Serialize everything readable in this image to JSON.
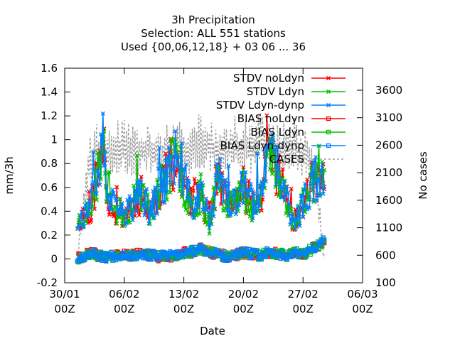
{
  "chart_data": {
    "type": "line",
    "title_lines": [
      "3h Precipitation",
      "Selection: ALL    551 stations",
      "Used {00,06,12,18} + 03 06 ... 36"
    ],
    "xlabel": "Date",
    "ylabel": "mm/3h",
    "y2label": "No cases",
    "xlim": [
      0,
      35
    ],
    "ylim": [
      -0.2,
      1.6
    ],
    "y2lim": [
      100,
      4000
    ],
    "yticks": [
      -0.2,
      0,
      0.2,
      0.4,
      0.6,
      0.8,
      1,
      1.2,
      1.4,
      1.6
    ],
    "ytick_labels": [
      "-0.2",
      "0",
      "0.2",
      "0.4",
      "0.6",
      "0.8",
      "1",
      "1.2",
      "1.4",
      "1.6"
    ],
    "y2ticks": [
      100,
      600,
      1100,
      1600,
      2100,
      2600,
      3100,
      3600
    ],
    "y2tick_labels": [
      "100",
      "600",
      "1100",
      "1600",
      "2100",
      "2600",
      "3100",
      "3600"
    ],
    "xticks": [
      {
        "x": 0,
        "line1": "30/01",
        "line2": "00Z"
      },
      {
        "x": 7,
        "line1": "06/02",
        "line2": "00Z"
      },
      {
        "x": 14,
        "line1": "13/02",
        "line2": "00Z"
      },
      {
        "x": 21,
        "line1": "20/02",
        "line2": "00Z"
      },
      {
        "x": 28,
        "line1": "27/02",
        "line2": "00Z"
      },
      {
        "x": 35,
        "line1": "06/03",
        "line2": "00Z"
      }
    ],
    "series": [
      {
        "name": "STDV noLdyn",
        "color": "#ff0000",
        "marker": "x",
        "kind": "stdv",
        "seed": 11,
        "phase": 0.0
      },
      {
        "name": "STDV Ldyn",
        "color": "#00c000",
        "marker": "x",
        "kind": "stdv",
        "seed": 23,
        "phase": 0.3
      },
      {
        "name": "STDV Ldyn-dynp",
        "color": "#0080ff",
        "marker": "x",
        "kind": "stdv",
        "seed": 37,
        "phase": 0.6
      },
      {
        "name": "BIAS noLdyn",
        "color": "#ff0000",
        "marker": "square",
        "kind": "bias",
        "seed": 41,
        "phase": 0.1
      },
      {
        "name": "BIAS Ldyn",
        "color": "#00c000",
        "marker": "square",
        "kind": "bias",
        "seed": 53,
        "phase": 0.4
      },
      {
        "name": "BIAS Ldyn-dynp",
        "color": "#0080ff",
        "marker": "square",
        "kind": "bias",
        "seed": 67,
        "phase": 0.7
      },
      {
        "name": "CASES",
        "color": "#a0a0a0",
        "marker": "none",
        "kind": "cases",
        "seed": 79,
        "phase": 0.0
      }
    ],
    "data_range_days": [
      1.5,
      30.5
    ],
    "step_hours": 3,
    "profile_days": [
      1.5,
      2,
      3,
      4,
      4.5,
      5,
      6,
      7,
      8,
      9,
      10,
      11,
      12,
      13,
      14,
      15,
      16,
      17,
      18,
      19,
      20,
      21,
      22,
      23,
      24,
      25,
      26,
      27,
      28,
      29,
      30,
      30.5
    ],
    "stdv_profile": [
      0.3,
      0.35,
      0.4,
      0.75,
      0.95,
      0.55,
      0.4,
      0.38,
      0.45,
      0.55,
      0.4,
      0.55,
      0.7,
      0.85,
      0.6,
      0.45,
      0.55,
      0.3,
      0.7,
      0.5,
      0.45,
      0.6,
      0.45,
      0.5,
      0.9,
      0.75,
      0.5,
      0.3,
      0.45,
      0.65,
      0.7,
      0.6
    ],
    "bias_profile": [
      0.0,
      0.02,
      0.05,
      0.03,
      0.02,
      0.02,
      0.03,
      0.04,
      0.03,
      0.04,
      0.03,
      0.02,
      0.03,
      0.02,
      0.05,
      0.06,
      0.08,
      0.06,
      0.04,
      0.02,
      0.03,
      0.05,
      0.04,
      0.03,
      0.06,
      0.04,
      0.03,
      0.05,
      0.04,
      0.08,
      0.12,
      0.15
    ],
    "cases_profile": [
      600,
      1500,
      2700,
      2900,
      3000,
      2800,
      2900,
      3000,
      2850,
      2900,
      2950,
      2800,
      2900,
      3000,
      2950,
      2900,
      3050,
      3000,
      2900,
      2950,
      3000,
      2900,
      2950,
      3100,
      3050,
      2900,
      2950,
      3000,
      2850,
      2700,
      1400,
      600
    ]
  }
}
